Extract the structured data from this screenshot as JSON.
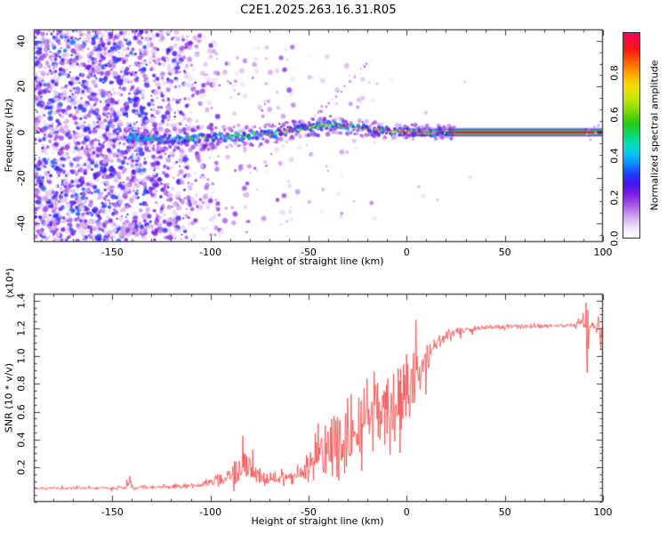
{
  "title": "C2E1.2025.263.16.31.R05",
  "colorbar": {
    "label": "Normalized spectral amplitude",
    "tick_labels": [
      "0.0",
      "0.2",
      "0.4",
      "0.6",
      "0.8"
    ],
    "tick_values": [
      0.0,
      0.2,
      0.4,
      0.6,
      0.8
    ],
    "range": [
      0,
      1
    ],
    "stops": [
      [
        0.0,
        "#ffffff"
      ],
      [
        0.04,
        "#f3ebfa"
      ],
      [
        0.1,
        "#d2a8ee"
      ],
      [
        0.16,
        "#a556e3"
      ],
      [
        0.21,
        "#7d1fe0"
      ],
      [
        0.26,
        "#4613f0"
      ],
      [
        0.31,
        "#1f3bff"
      ],
      [
        0.36,
        "#0a8cff"
      ],
      [
        0.41,
        "#00c9ec"
      ],
      [
        0.46,
        "#00dfb2"
      ],
      [
        0.51,
        "#0ed45e"
      ],
      [
        0.56,
        "#27c912"
      ],
      [
        0.62,
        "#7fdb04"
      ],
      [
        0.68,
        "#c6e800"
      ],
      [
        0.74,
        "#f2dc00"
      ],
      [
        0.8,
        "#ffa600"
      ],
      [
        0.86,
        "#ff5e00"
      ],
      [
        0.92,
        "#fc1414"
      ],
      [
        1.0,
        "#f00362"
      ]
    ]
  },
  "chart_data": [
    {
      "type": "heatmap",
      "name": "doppler-spectrogram",
      "xlabel": "Height of straight line (km)",
      "ylabel": "Frequency (Hz)",
      "xlim": [
        -190,
        100
      ],
      "ylim": [
        -48,
        45
      ],
      "xtick_values": [
        -150,
        -100,
        -50,
        0,
        50,
        100
      ],
      "xtick_labels": [
        "-150",
        "-100",
        "-50",
        "0",
        "50",
        "100"
      ],
      "ytick_values": [
        40,
        20,
        0,
        -20,
        -40
      ],
      "ytick_labels": [
        "40",
        "20",
        "0",
        "-20",
        "-40"
      ],
      "x_minor_step": 10,
      "y_minor_step": 5,
      "noise_regions": [
        {
          "x0": -190,
          "x1": -132,
          "f0": -48,
          "f1": 45,
          "count": 1900,
          "imin": 0.05,
          "imax": 0.34
        },
        {
          "x0": -132,
          "x1": -110,
          "f0": -48,
          "f1": 45,
          "count": 420,
          "imin": 0.05,
          "imax": 0.3
        },
        {
          "x0": -110,
          "x1": -95,
          "f0": -46,
          "f1": 43,
          "count": 150,
          "imin": 0.04,
          "imax": 0.24
        },
        {
          "x0": -95,
          "x1": -58,
          "f0": -44,
          "f1": 40,
          "count": 120,
          "imin": 0.04,
          "imax": 0.2
        },
        {
          "x0": -58,
          "x1": -8,
          "f0": -38,
          "f1": 34,
          "count": 50,
          "imin": 0.04,
          "imax": 0.14
        },
        {
          "x0": -8,
          "x1": 62,
          "f0": -30,
          "f1": 30,
          "count": 7,
          "imin": 0.04,
          "imax": 0.1
        }
      ],
      "band_track": [
        [
          -142,
          -2.5
        ],
        [
          -125,
          -3.2
        ],
        [
          -108,
          -2.8
        ],
        [
          -92,
          -2.0
        ],
        [
          -78,
          -1.2
        ],
        [
          -66,
          -0.2
        ],
        [
          -56,
          1.0
        ],
        [
          -47,
          2.2
        ],
        [
          -39,
          3.2
        ],
        [
          -31,
          2.6
        ],
        [
          -24,
          1.8
        ],
        [
          -16,
          1.0
        ],
        [
          -8,
          0.4
        ],
        [
          0,
          0.1
        ],
        [
          24,
          0.0
        ]
      ],
      "band": {
        "x_start": -142,
        "x_end": 24,
        "step_km": 1.05
      },
      "solid_line": {
        "x_start": -3,
        "x_end": 100,
        "freq": 0.0,
        "layers": [
          [
            10.5,
            0.12
          ],
          [
            8.0,
            0.27
          ],
          [
            6.2,
            0.4
          ],
          [
            4.6,
            0.53
          ],
          [
            3.4,
            0.7
          ],
          [
            2.6,
            0.96
          ]
        ]
      },
      "end_dark": {
        "x0": 96.5,
        "x1": 100,
        "height": 2.6,
        "color": "#70141e"
      },
      "end_blobs": {
        "x0": 88,
        "x1": 99,
        "count": 12
      },
      "diagonal_streak": {
        "x0": -52,
        "f0": 3.0,
        "x1": -19,
        "f1": 30.5,
        "count": 26
      }
    },
    {
      "type": "line",
      "name": "snr-profile",
      "xlabel": "Height of straight line (km)",
      "ylabel": "SNR (10 * v/v)",
      "scale_label": "(x10⁴)",
      "xlim": [
        -190,
        100
      ],
      "ylim": [
        -0.05,
        1.45
      ],
      "xtick_values": [
        -150,
        -100,
        -50,
        0,
        50,
        100
      ],
      "xtick_labels": [
        "-150",
        "-100",
        "-50",
        "0",
        "50",
        "100"
      ],
      "ytick_values": [
        0.2,
        0.4,
        0.6,
        0.8,
        1.0,
        1.2,
        1.4
      ],
      "ytick_labels": [
        "0.2",
        "0.4",
        "0.6",
        "0.8",
        "1.0",
        "1.2",
        "1.4"
      ],
      "x_minor_step": 10,
      "y_minor_step": 0.05,
      "line_color": "#f23c3c",
      "sample_step_km": 0.3,
      "envelope": [
        [
          -190,
          0.048,
          0.012
        ],
        [
          -170,
          0.05,
          0.012
        ],
        [
          -150,
          0.052,
          0.014
        ],
        [
          -143,
          0.055,
          0.02
        ],
        [
          -141,
          0.1,
          0.04
        ],
        [
          -139,
          0.055,
          0.02
        ],
        [
          -128,
          0.058,
          0.018
        ],
        [
          -115,
          0.06,
          0.022
        ],
        [
          -106,
          0.07,
          0.03
        ],
        [
          -99,
          0.09,
          0.05
        ],
        [
          -92,
          0.12,
          0.07
        ],
        [
          -86,
          0.17,
          0.11
        ],
        [
          -81,
          0.21,
          0.14
        ],
        [
          -77,
          0.15,
          0.09
        ],
        [
          -71,
          0.11,
          0.05
        ],
        [
          -66,
          0.13,
          0.07
        ],
        [
          -60,
          0.14,
          0.08
        ],
        [
          -54,
          0.13,
          0.08
        ],
        [
          -49,
          0.22,
          0.18
        ],
        [
          -45,
          0.33,
          0.28
        ],
        [
          -41,
          0.3,
          0.24
        ],
        [
          -37,
          0.38,
          0.3
        ],
        [
          -33,
          0.42,
          0.32
        ],
        [
          -29,
          0.46,
          0.34
        ],
        [
          -25,
          0.44,
          0.34
        ],
        [
          -21,
          0.52,
          0.34
        ],
        [
          -17,
          0.58,
          0.34
        ],
        [
          -13,
          0.6,
          0.33
        ],
        [
          -9,
          0.6,
          0.36
        ],
        [
          -5,
          0.64,
          0.38
        ],
        [
          -1,
          0.7,
          0.38
        ],
        [
          2,
          0.78,
          0.34
        ],
        [
          5,
          0.86,
          0.26
        ],
        [
          8,
          0.95,
          0.18
        ],
        [
          12,
          1.04,
          0.11
        ],
        [
          16,
          1.11,
          0.07
        ],
        [
          20,
          1.15,
          0.05
        ],
        [
          26,
          1.18,
          0.035
        ],
        [
          34,
          1.2,
          0.028
        ],
        [
          45,
          1.21,
          0.022
        ],
        [
          60,
          1.215,
          0.02
        ],
        [
          75,
          1.22,
          0.02
        ],
        [
          86,
          1.22,
          0.025
        ],
        [
          90,
          1.25,
          0.09
        ],
        [
          92,
          1.1,
          0.25
        ],
        [
          94,
          1.23,
          0.05
        ],
        [
          97,
          1.21,
          0.05
        ],
        [
          100,
          1.17,
          0.09
        ]
      ],
      "events": [
        [
          -141,
          0.135
        ],
        [
          91.3,
          1.385
        ],
        [
          92.1,
          0.88
        ],
        [
          98.8,
          1.05
        ]
      ]
    }
  ]
}
